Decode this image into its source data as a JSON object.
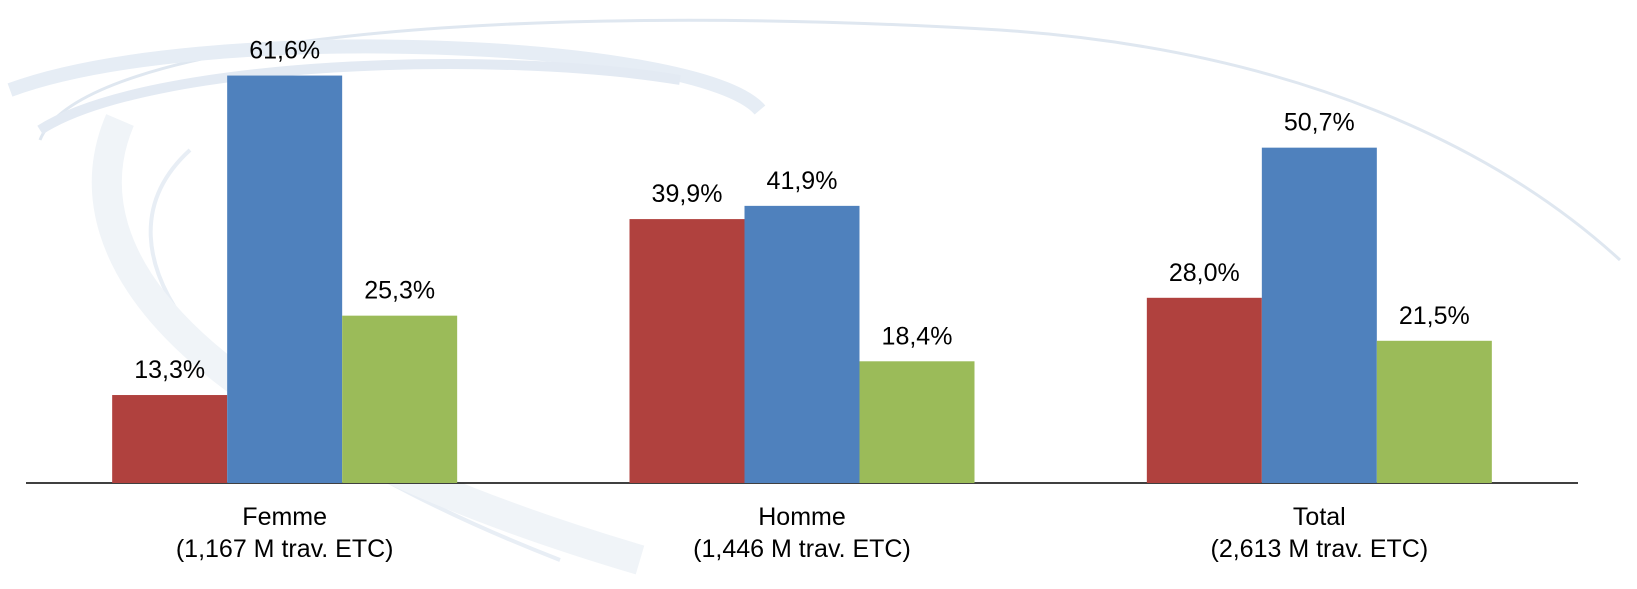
{
  "chart_data": {
    "type": "bar",
    "categories": [
      [
        "Femme",
        "(1,167 M trav. ETC)"
      ],
      [
        "Homme",
        "(1,446 M trav. ETC)"
      ],
      [
        "Total",
        "(2,613 M trav. ETC)"
      ]
    ],
    "series": [
      {
        "color": "#b0413e",
        "values": [
          13.3,
          39.9,
          28.0
        ],
        "value_labels": [
          "13,3%",
          "39,9%",
          "28,0%"
        ]
      },
      {
        "color": "#4f81bd",
        "values": [
          61.6,
          41.9,
          50.7
        ],
        "value_labels": [
          "61,6%",
          "41,9%",
          "50,7%"
        ]
      },
      {
        "color": "#9bbb59",
        "values": [
          25.3,
          18.4,
          21.5
        ],
        "value_labels": [
          "25,3%",
          "18,4%",
          "21,5%"
        ]
      }
    ],
    "ylim": [
      0,
      70
    ]
  }
}
